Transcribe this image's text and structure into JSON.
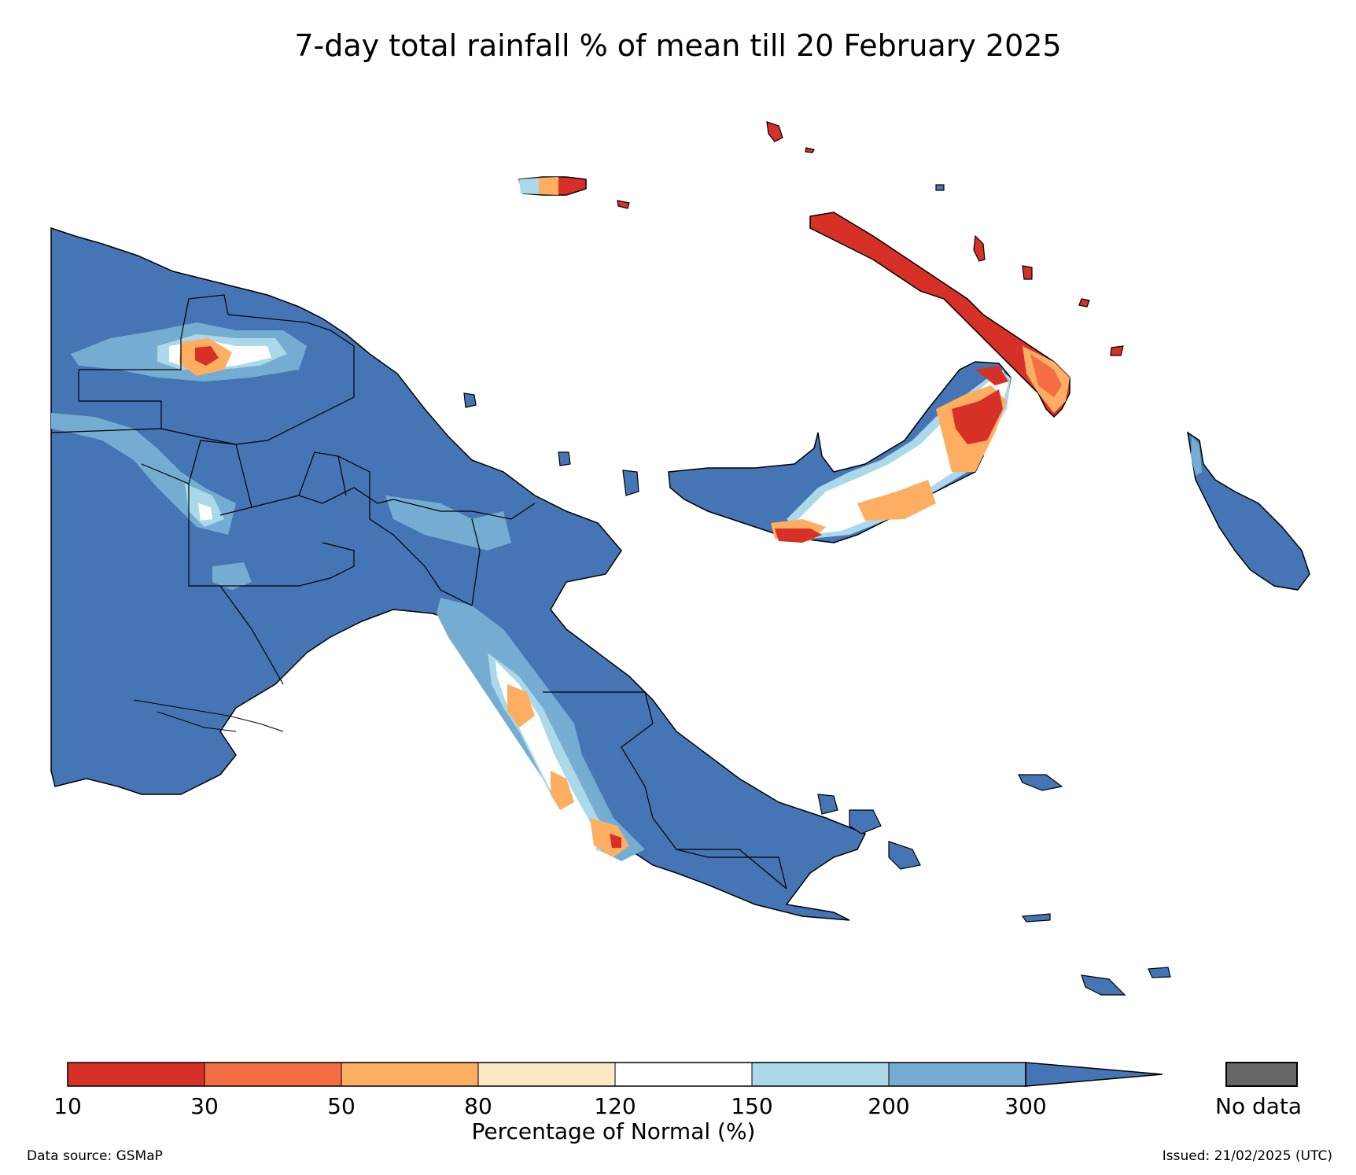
{
  "title": "7-day total rainfall % of mean till 20 February 2025",
  "colorbar": {
    "label": "Percentage of Normal (%)",
    "ticks": [
      "10",
      "30",
      "50",
      "80",
      "120",
      "150",
      "200",
      "300"
    ],
    "bins": [
      {
        "range": "10-30",
        "color": "#d73027"
      },
      {
        "range": "30-50",
        "color": "#f46d43"
      },
      {
        "range": "50-80",
        "color": "#fdae61"
      },
      {
        "range": "80-120",
        "color": "#fee9c4"
      },
      {
        "range": "120-150",
        "color": "#ffffff"
      },
      {
        "range": "150-200",
        "color": "#abd9e9"
      },
      {
        "range": "200-300",
        "color": "#74add1"
      },
      {
        "range": ">300",
        "color": "#4575b4"
      }
    ]
  },
  "no_data": {
    "label": "No data",
    "color": "#666666"
  },
  "footer": {
    "source": "Data source: GSMaP",
    "issued": "Issued: 21/02/2025 (UTC)"
  },
  "map_colors": {
    "dominant": "#4575b4",
    "mid_blue": "#74add1",
    "light_blue": "#abd9e9",
    "orange": "#fdae61",
    "dark_orange": "#f46d43",
    "red": "#d73027"
  }
}
